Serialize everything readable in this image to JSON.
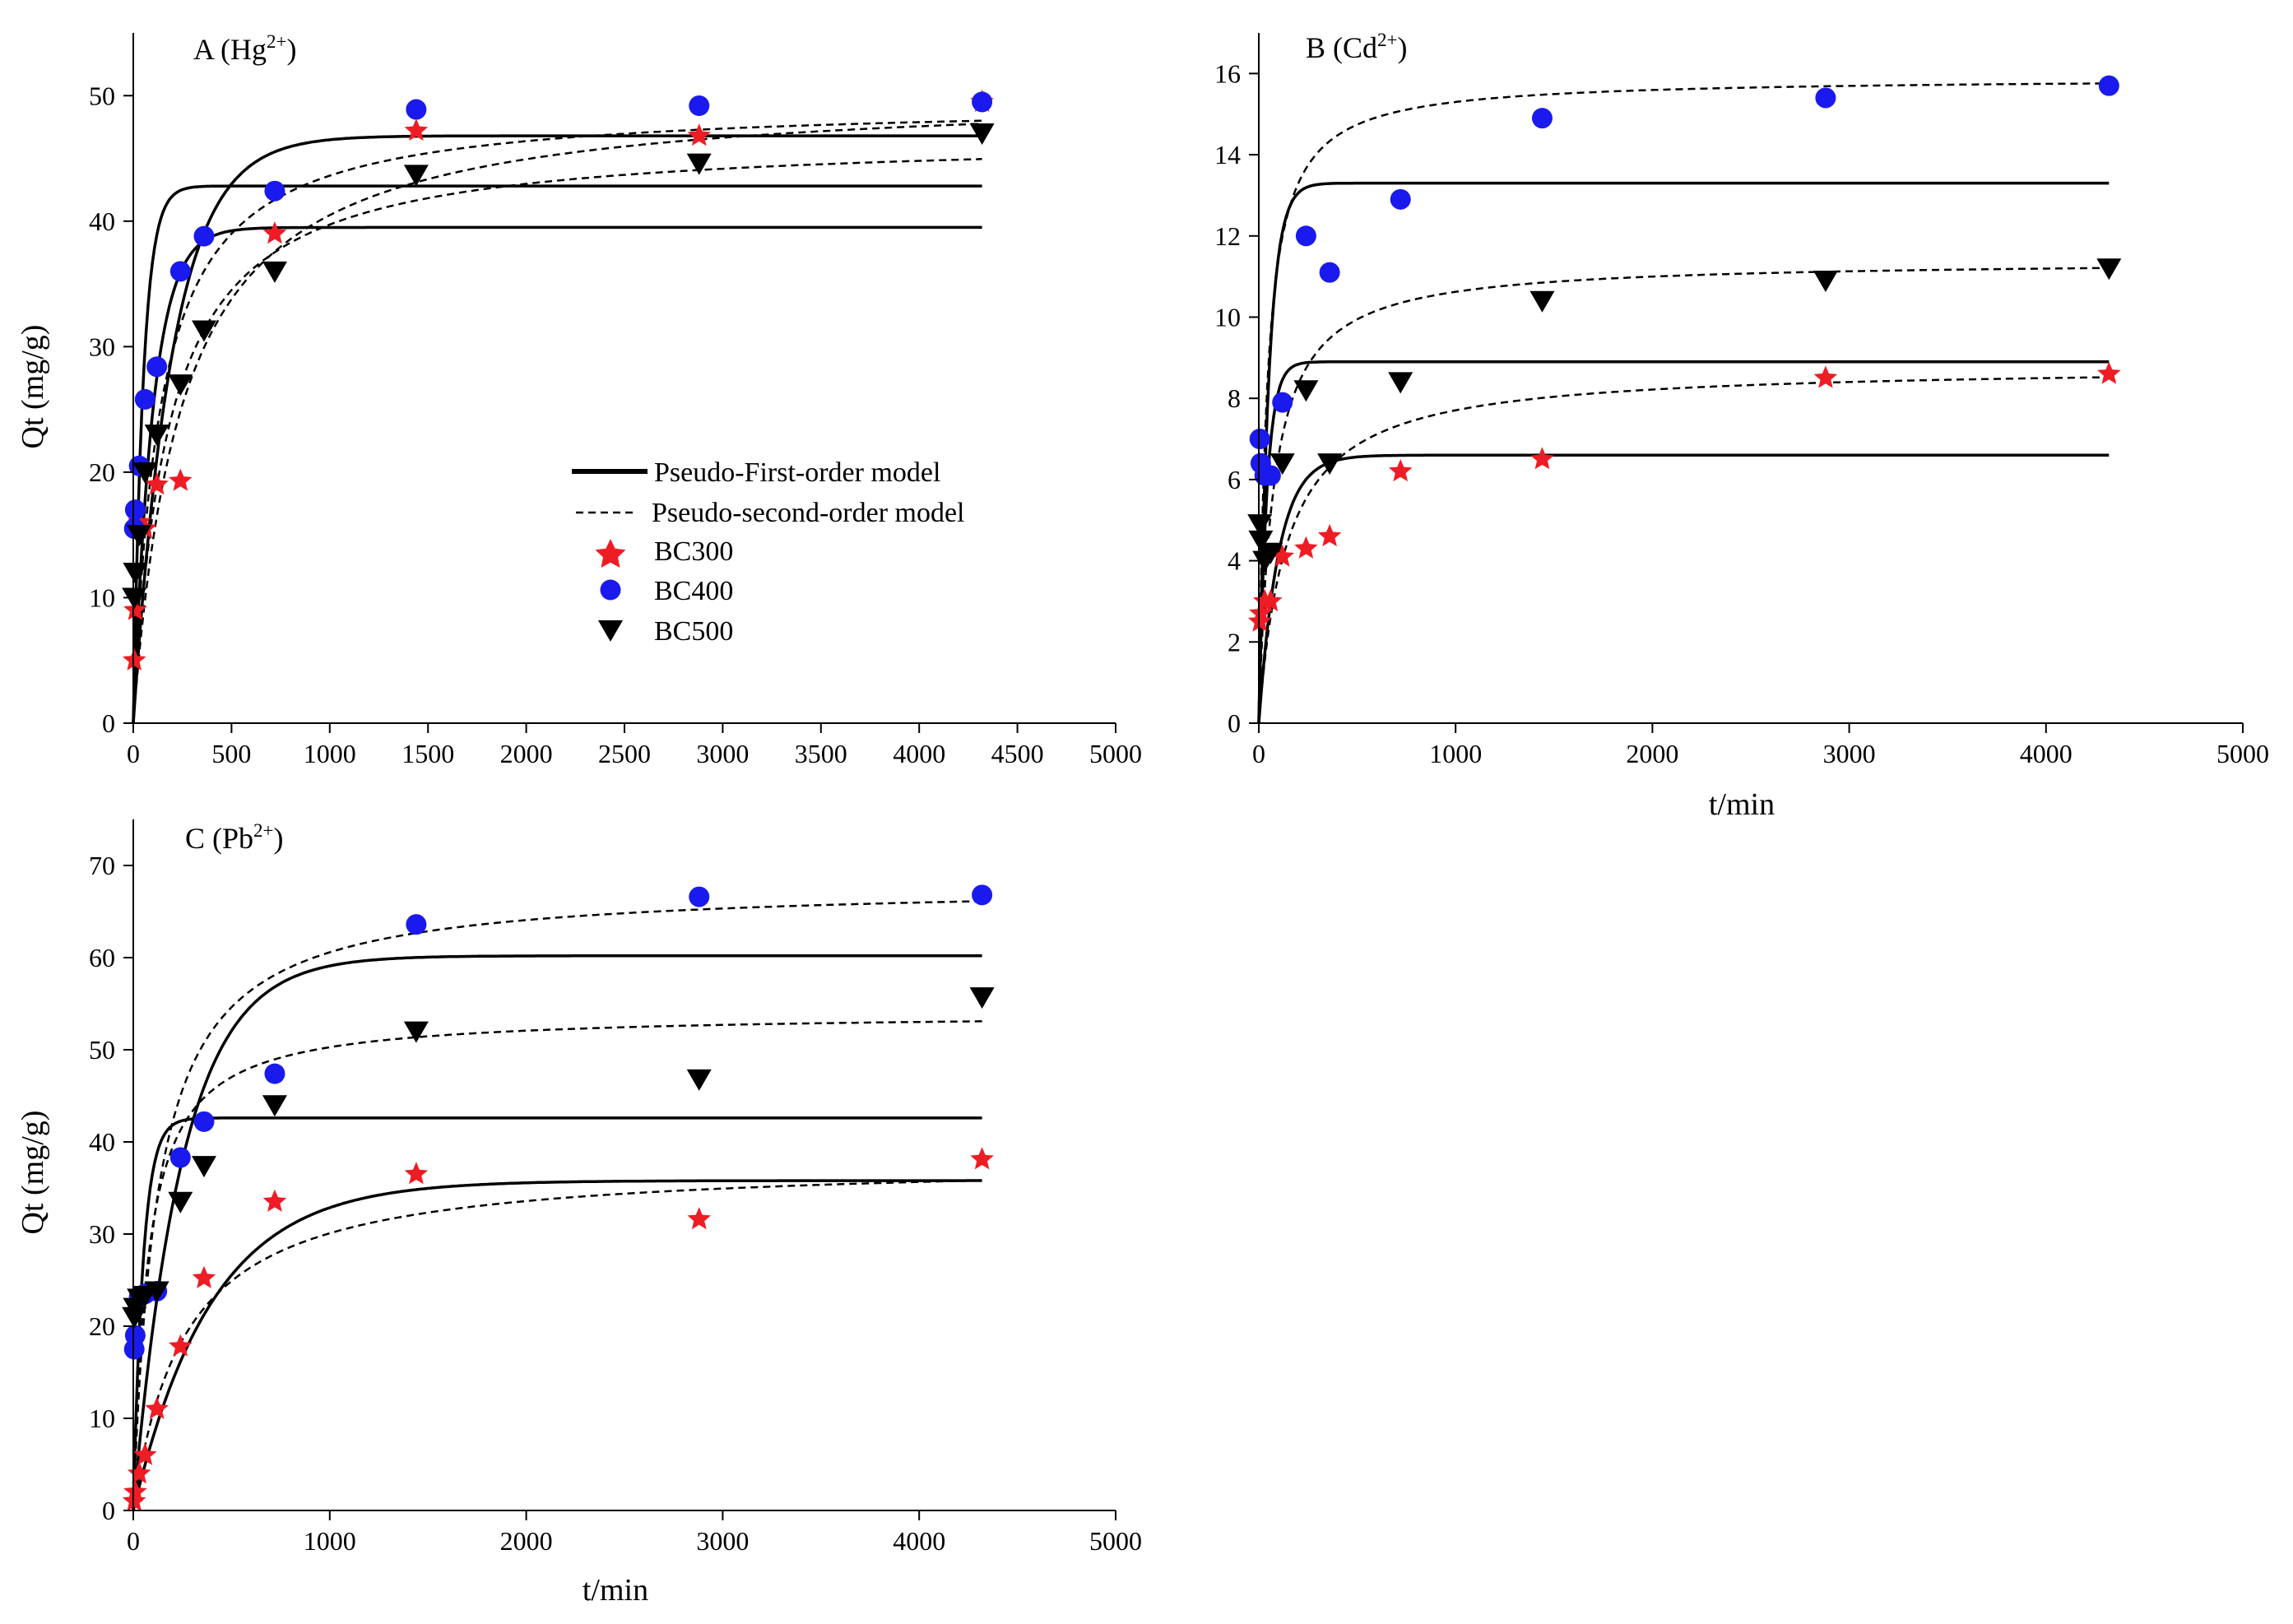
{
  "legend": {
    "first_order": "Pseudo-First-order model",
    "second_order": "Pseudo-second-order model",
    "series": [
      "BC300",
      "BC400",
      "BC500"
    ]
  },
  "colors": {
    "BC300": "#ee1c24",
    "BC400": "#1a1aee",
    "BC500": "#000000",
    "line": "#000000"
  },
  "chart_data": [
    {
      "panel": "A",
      "type": "scatter",
      "title_main": "A (Hg",
      "title_sup": "2+",
      "title_end": ")",
      "xlabel": "",
      "ylabel": "Qt (mg/g)",
      "xlim": [
        0,
        5000
      ],
      "ylim": [
        0,
        55
      ],
      "xticks": [
        0,
        500,
        1000,
        1500,
        2000,
        2500,
        3000,
        3500,
        4000,
        4500,
        5000
      ],
      "yticks": [
        0,
        10,
        20,
        30,
        40,
        50
      ],
      "series": [
        {
          "name": "BC300",
          "marker": "star",
          "x": [
            5,
            10,
            30,
            60,
            120,
            240,
            720,
            1440,
            2880,
            4320
          ],
          "y": [
            5,
            9,
            16,
            15.5,
            19,
            19.3,
            39,
            47.2,
            46.8,
            49.5
          ],
          "pfo": {
            "qe": 39.5,
            "k": 0.01
          },
          "pso": {
            "qe": 50.5,
            "k": 8e-05
          }
        },
        {
          "name": "BC400",
          "marker": "circle",
          "x": [
            5,
            10,
            30,
            60,
            120,
            240,
            360,
            720,
            1440,
            2880,
            4320
          ],
          "y": [
            15.5,
            17,
            20.5,
            25.8,
            28.4,
            36,
            38.8,
            42.4,
            48.9,
            49.2,
            49.5
          ],
          "pfo": {
            "qe": 46.8,
            "k": 0.005
          },
          "pso": {
            "qe": 49.5,
            "k": 0.00015
          }
        },
        {
          "name": "BC500",
          "marker": "triangle",
          "x": [
            5,
            10,
            30,
            60,
            120,
            240,
            360,
            720,
            1440,
            2880,
            4320
          ],
          "y": [
            10,
            12,
            15,
            20,
            23,
            27,
            31.3,
            36,
            43.7,
            44.6,
            47
          ],
          "pfo": {
            "qe": 42.8,
            "k": 0.02
          },
          "pso": {
            "qe": 46.8,
            "k": 0.00012
          }
        }
      ]
    },
    {
      "panel": "B",
      "type": "scatter",
      "title_main": "B (Cd",
      "title_sup": "2+",
      "title_end": ")",
      "xlabel": "t/min",
      "ylabel": "",
      "xlim": [
        0,
        5000
      ],
      "ylim": [
        0,
        17
      ],
      "xticks": [
        0,
        1000,
        2000,
        3000,
        4000,
        5000
      ],
      "yticks": [
        0,
        2,
        4,
        6,
        8,
        10,
        12,
        14,
        16
      ],
      "series": [
        {
          "name": "BC300",
          "marker": "star",
          "x": [
            5,
            10,
            30,
            60,
            120,
            240,
            360,
            720,
            1440,
            2880,
            4320
          ],
          "y": [
            2.5,
            2.7,
            3.0,
            3.0,
            4.1,
            4.3,
            4.6,
            6.2,
            6.5,
            8.5,
            8.6
          ],
          "pfo": {
            "qe": 6.6,
            "k": 0.01
          },
          "pso": {
            "qe": 8.8,
            "k": 0.0008
          }
        },
        {
          "name": "BC400",
          "marker": "circle",
          "x": [
            5,
            10,
            30,
            60,
            120,
            240,
            360,
            720,
            1440,
            2880,
            4320
          ],
          "y": [
            7.0,
            6.4,
            6.1,
            6.1,
            7.9,
            12.0,
            11.1,
            12.9,
            14.9,
            15.4,
            15.7
          ],
          "pfo": {
            "qe": 13.3,
            "k": 0.02
          },
          "pso": {
            "qe": 15.9,
            "k": 0.0016
          }
        },
        {
          "name": "BC500",
          "marker": "triangle",
          "x": [
            5,
            10,
            30,
            60,
            120,
            240,
            360,
            720,
            1440,
            2880,
            4320
          ],
          "y": [
            4.9,
            4.5,
            4.0,
            4.2,
            6.4,
            8.2,
            6.4,
            8.4,
            10.4,
            10.9,
            11.2
          ],
          "pfo": {
            "qe": 8.9,
            "k": 0.025
          },
          "pso": {
            "qe": 11.4,
            "k": 0.0012
          }
        }
      ]
    },
    {
      "panel": "C",
      "type": "scatter",
      "title_main": "C (Pb",
      "title_sup": "2+",
      "title_end": ")",
      "xlabel": "t/min",
      "ylabel": "Qt (mg/g)",
      "xlim": [
        0,
        5000
      ],
      "ylim": [
        0,
        75
      ],
      "xticks": [
        0,
        1000,
        2000,
        3000,
        4000,
        5000
      ],
      "yticks": [
        0,
        10,
        20,
        30,
        40,
        50,
        60,
        70
      ],
      "series": [
        {
          "name": "BC300",
          "marker": "star",
          "x": [
            5,
            10,
            30,
            60,
            120,
            240,
            360,
            720,
            1440,
            2880,
            4320
          ],
          "y": [
            1,
            2,
            4,
            6,
            11,
            17.8,
            25.2,
            33.5,
            36.5,
            31.6,
            38.1
          ],
          "pfo": {
            "qe": 35.8,
            "k": 0.0025
          },
          "pso": {
            "qe": 38,
            "k": 0.0001
          }
        },
        {
          "name": "BC400",
          "marker": "circle",
          "x": [
            5,
            10,
            30,
            60,
            120,
            240,
            360,
            720,
            1440,
            2880,
            4320
          ],
          "y": [
            17.5,
            19,
            23.2,
            23.5,
            23.8,
            38.3,
            42.2,
            47.4,
            63.6,
            66.6,
            66.8
          ],
          "pfo": {
            "qe": 60.2,
            "k": 0.004
          },
          "pso": {
            "qe": 68,
            "k": 0.00012
          }
        },
        {
          "name": "BC500",
          "marker": "triangle",
          "x": [
            5,
            10,
            30,
            60,
            120,
            240,
            360,
            720,
            1440,
            2880,
            4320
          ],
          "y": [
            21,
            22,
            23,
            23.3,
            23.8,
            33.5,
            37.4,
            44,
            52,
            46.8,
            55.7
          ],
          "pfo": {
            "qe": 42.6,
            "k": 0.02
          },
          "pso": {
            "qe": 54,
            "k": 0.00025
          }
        }
      ]
    }
  ]
}
